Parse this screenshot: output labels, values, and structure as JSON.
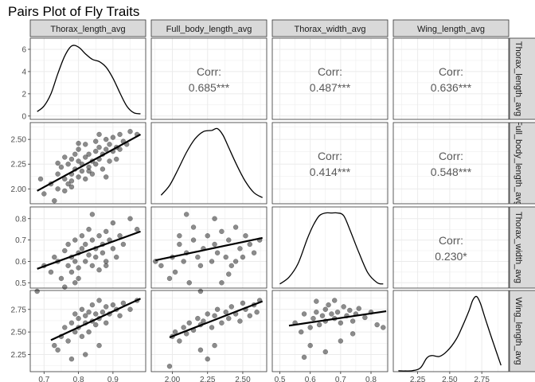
{
  "chart_data": {
    "type": "pairs",
    "title": "Pairs Plot of Fly Traits",
    "variables": [
      "Thorax_length_avg",
      "Full_body_length_avg",
      "Thorax_width_avg",
      "Wing_length_avg"
    ],
    "row_strips": [
      "Thorax_length_avg",
      "Full_body_length_avg",
      "Thorax_width_avg",
      "Wing_length_avg"
    ],
    "corr_label": "Corr:",
    "correlations": [
      {
        "row": 0,
        "col": 1,
        "value": "0.685***"
      },
      {
        "row": 0,
        "col": 2,
        "value": "0.487***"
      },
      {
        "row": 0,
        "col": 3,
        "value": "0.636***"
      },
      {
        "row": 1,
        "col": 2,
        "value": "0.414***"
      },
      {
        "row": 1,
        "col": 3,
        "value": "0.548***"
      },
      {
        "row": 2,
        "col": 3,
        "value": "0.230*"
      }
    ],
    "x_axes": [
      {
        "range": [
          0.66,
          0.995
        ],
        "ticks": [
          0.7,
          0.8,
          0.9
        ],
        "labels": [
          "0.7",
          "0.8",
          "0.9"
        ]
      },
      {
        "range": [
          1.85,
          2.67
        ],
        "ticks": [
          2.0,
          2.25,
          2.5
        ],
        "labels": [
          "2.00",
          "2.25",
          "2.50"
        ]
      },
      {
        "range": [
          0.475,
          0.855
        ],
        "ticks": [
          0.5,
          0.6,
          0.7,
          0.8
        ],
        "labels": [
          "0.5",
          "0.6",
          "0.7",
          "0.8"
        ]
      },
      {
        "range": [
          2.06,
          2.96
        ],
        "ticks": [
          2.25,
          2.5,
          2.75
        ],
        "labels": [
          "2.25",
          "2.50",
          "2.75"
        ]
      }
    ],
    "y_axes": [
      {
        "range": [
          -0.3,
          7.0
        ],
        "ticks": [
          0,
          2,
          4,
          6
        ],
        "labels": [
          "0",
          "2",
          "4",
          "6"
        ]
      },
      {
        "range": [
          1.85,
          2.67
        ],
        "ticks": [
          2.0,
          2.25,
          2.5
        ],
        "labels": [
          "2.00",
          "2.25",
          "2.50"
        ]
      },
      {
        "range": [
          0.475,
          0.855
        ],
        "ticks": [
          0.5,
          0.6,
          0.7,
          0.8
        ],
        "labels": [
          "0.5",
          "0.6",
          "0.7",
          "0.8"
        ]
      },
      {
        "range": [
          2.06,
          2.96
        ],
        "ticks": [
          2.25,
          2.5,
          2.75
        ],
        "labels": [
          "2.25",
          "2.50",
          "2.75"
        ]
      }
    ],
    "densities": [
      {
        "x": [
          0.68,
          0.7,
          0.72,
          0.74,
          0.76,
          0.78,
          0.8,
          0.82,
          0.84,
          0.86,
          0.88,
          0.9,
          0.92,
          0.94,
          0.96,
          0.98
        ],
        "y": [
          0.4,
          0.9,
          2.0,
          3.8,
          5.4,
          6.3,
          6.2,
          5.6,
          5.1,
          4.9,
          4.4,
          3.4,
          2.1,
          0.9,
          0.3,
          0.2
        ]
      },
      {
        "x": [
          1.92,
          1.98,
          2.04,
          2.1,
          2.16,
          2.22,
          2.28,
          2.32,
          2.36,
          2.4,
          2.46,
          2.52,
          2.58,
          2.64
        ],
        "y": [
          0.7,
          1.5,
          2.8,
          4.2,
          5.3,
          5.9,
          6.0,
          6.15,
          5.6,
          4.6,
          3.1,
          1.8,
          0.9,
          0.5
        ]
      },
      {
        "x": [
          0.5,
          0.53,
          0.56,
          0.59,
          0.61,
          0.63,
          0.65,
          0.67,
          0.69,
          0.71,
          0.73,
          0.76,
          0.79,
          0.82,
          0.84
        ],
        "y": [
          0.3,
          0.8,
          1.8,
          3.6,
          4.6,
          5.3,
          5.5,
          5.5,
          5.5,
          5.3,
          4.3,
          2.6,
          1.1,
          0.4,
          0.3
        ]
      },
      {
        "x": [
          2.1,
          2.2,
          2.27,
          2.32,
          2.36,
          2.42,
          2.48,
          2.55,
          2.6,
          2.65,
          2.68,
          2.71,
          2.74,
          2.78,
          2.84,
          2.9
        ],
        "y": [
          0.05,
          0.05,
          0.2,
          0.75,
          0.9,
          0.85,
          1.15,
          1.8,
          2.55,
          3.4,
          4.0,
          4.2,
          3.8,
          2.9,
          1.6,
          0.35
        ]
      }
    ],
    "scatter": [
      {
        "row": 1,
        "col": 0,
        "x_var": "Thorax_length_avg",
        "y_var": "Full_body_length_avg",
        "x": [
          0.69,
          0.7,
          0.72,
          0.73,
          0.74,
          0.74,
          0.75,
          0.76,
          0.76,
          0.77,
          0.77,
          0.78,
          0.78,
          0.78,
          0.79,
          0.79,
          0.8,
          0.8,
          0.8,
          0.81,
          0.81,
          0.82,
          0.82,
          0.82,
          0.83,
          0.83,
          0.84,
          0.84,
          0.85,
          0.85,
          0.85,
          0.86,
          0.86,
          0.87,
          0.87,
          0.88,
          0.88,
          0.89,
          0.89,
          0.9,
          0.9,
          0.91,
          0.91,
          0.92,
          0.93,
          0.94,
          0.95,
          0.97,
          0.78,
          0.83,
          0.86,
          0.8,
          0.76,
          0.88,
          0.92,
          0.74
        ],
        "y": [
          2.1,
          1.95,
          2.05,
          1.88,
          2.15,
          2.0,
          2.22,
          2.1,
          1.98,
          2.25,
          2.05,
          2.3,
          2.15,
          2.02,
          2.2,
          2.35,
          2.12,
          2.28,
          2.4,
          2.18,
          2.25,
          2.32,
          2.1,
          2.45,
          2.22,
          2.35,
          2.28,
          2.15,
          2.38,
          2.25,
          2.48,
          2.3,
          2.42,
          2.2,
          2.35,
          2.4,
          2.5,
          2.28,
          2.45,
          2.38,
          2.52,
          2.42,
          2.3,
          2.55,
          2.48,
          2.45,
          2.58,
          2.55,
          2.08,
          2.18,
          2.55,
          2.46,
          2.32,
          2.12,
          2.4,
          2.26
        ],
        "fit": [
          [
            0.68,
            1.98
          ],
          [
            0.98,
            2.55
          ]
        ]
      },
      {
        "row": 2,
        "col": 0,
        "x_var": "Thorax_length_avg",
        "y_var": "Thorax_width_avg",
        "x": [
          0.68,
          0.7,
          0.72,
          0.73,
          0.74,
          0.75,
          0.76,
          0.77,
          0.77,
          0.78,
          0.78,
          0.79,
          0.79,
          0.8,
          0.8,
          0.81,
          0.81,
          0.82,
          0.82,
          0.83,
          0.83,
          0.84,
          0.84,
          0.85,
          0.85,
          0.86,
          0.86,
          0.87,
          0.87,
          0.88,
          0.88,
          0.89,
          0.9,
          0.9,
          0.91,
          0.92,
          0.93,
          0.95,
          0.97,
          0.76,
          0.8,
          0.84,
          0.88,
          0.79
        ],
        "y": [
          0.46,
          0.58,
          0.55,
          0.62,
          0.6,
          0.52,
          0.65,
          0.58,
          0.68,
          0.62,
          0.55,
          0.7,
          0.6,
          0.64,
          0.57,
          0.66,
          0.72,
          0.6,
          0.68,
          0.63,
          0.75,
          0.58,
          0.7,
          0.66,
          0.62,
          0.72,
          0.56,
          0.68,
          0.64,
          0.74,
          0.6,
          0.7,
          0.66,
          0.78,
          0.62,
          0.72,
          0.68,
          0.8,
          0.75,
          0.48,
          0.52,
          0.82,
          0.58,
          0.5
        ],
        "fit": [
          [
            0.68,
            0.565
          ],
          [
            0.98,
            0.74
          ]
        ]
      },
      {
        "row": 2,
        "col": 1,
        "x_var": "Full_body_length_avg",
        "y_var": "Thorax_width_avg",
        "x": [
          1.88,
          1.92,
          1.98,
          2.0,
          2.02,
          2.05,
          2.08,
          2.1,
          2.12,
          2.15,
          2.18,
          2.2,
          2.22,
          2.25,
          2.28,
          2.3,
          2.32,
          2.35,
          2.38,
          2.4,
          2.42,
          2.45,
          2.48,
          2.5,
          2.52,
          2.55,
          2.58,
          2.62,
          2.1,
          2.2,
          2.3,
          2.4,
          2.15,
          2.35,
          2.05,
          2.45
        ],
        "y": [
          0.6,
          0.58,
          0.52,
          0.62,
          0.55,
          0.68,
          0.6,
          0.64,
          0.5,
          0.7,
          0.62,
          0.58,
          0.66,
          0.72,
          0.6,
          0.68,
          0.64,
          0.74,
          0.62,
          0.7,
          0.58,
          0.76,
          0.66,
          0.62,
          0.72,
          0.68,
          0.64,
          0.7,
          0.82,
          0.46,
          0.8,
          0.54,
          0.76,
          0.5,
          0.72,
          0.6
        ],
        "fit": [
          [
            1.88,
            0.605
          ],
          [
            2.64,
            0.71
          ]
        ]
      },
      {
        "row": 3,
        "col": 0,
        "x_var": "Thorax_length_avg",
        "y_var": "Wing_length_avg",
        "x": [
          0.73,
          0.74,
          0.75,
          0.76,
          0.77,
          0.78,
          0.79,
          0.79,
          0.8,
          0.8,
          0.81,
          0.81,
          0.82,
          0.82,
          0.83,
          0.83,
          0.84,
          0.84,
          0.85,
          0.85,
          0.86,
          0.86,
          0.87,
          0.88,
          0.88,
          0.89,
          0.9,
          0.91,
          0.92,
          0.93,
          0.95,
          0.97,
          0.78,
          0.82,
          0.86
        ],
        "y": [
          2.35,
          2.3,
          2.45,
          2.55,
          2.4,
          2.6,
          2.5,
          2.7,
          2.55,
          2.65,
          2.45,
          2.75,
          2.6,
          2.68,
          2.5,
          2.72,
          2.62,
          2.8,
          2.58,
          2.7,
          2.65,
          2.85,
          2.72,
          2.6,
          2.78,
          2.7,
          2.8,
          2.75,
          2.68,
          2.82,
          2.75,
          2.85,
          2.2,
          2.25,
          2.35
        ],
        "fit": [
          [
            0.72,
            2.41
          ],
          [
            0.98,
            2.87
          ]
        ]
      },
      {
        "row": 3,
        "col": 1,
        "x_var": "Full_body_length_avg",
        "y_var": "Wing_length_avg",
        "x": [
          2.0,
          2.02,
          2.05,
          2.08,
          2.1,
          2.12,
          2.15,
          2.18,
          2.2,
          2.22,
          2.25,
          2.28,
          2.3,
          2.32,
          2.35,
          2.38,
          2.4,
          2.42,
          2.45,
          2.48,
          2.5,
          2.52,
          2.55,
          2.58,
          2.6,
          2.62,
          2.2,
          2.3,
          2.25,
          1.98
        ],
        "y": [
          2.45,
          2.5,
          2.4,
          2.55,
          2.48,
          2.6,
          2.52,
          2.65,
          2.58,
          2.62,
          2.7,
          2.55,
          2.68,
          2.75,
          2.6,
          2.72,
          2.65,
          2.78,
          2.7,
          2.62,
          2.82,
          2.75,
          2.68,
          2.8,
          2.72,
          2.85,
          2.3,
          2.35,
          2.2,
          2.12
        ],
        "fit": [
          [
            1.98,
            2.44
          ],
          [
            2.64,
            2.84
          ]
        ]
      },
      {
        "row": 3,
        "col": 2,
        "x_var": "Thorax_width_avg",
        "y_var": "Wing_length_avg",
        "x": [
          0.55,
          0.57,
          0.58,
          0.6,
          0.61,
          0.62,
          0.63,
          0.64,
          0.65,
          0.65,
          0.66,
          0.67,
          0.68,
          0.68,
          0.69,
          0.7,
          0.71,
          0.72,
          0.73,
          0.74,
          0.75,
          0.76,
          0.78,
          0.8,
          0.82,
          0.6,
          0.65,
          0.7,
          0.58,
          0.74,
          0.62,
          0.84
        ],
        "y": [
          2.6,
          2.5,
          2.7,
          2.55,
          2.65,
          2.72,
          2.58,
          2.68,
          2.75,
          2.62,
          2.8,
          2.7,
          2.65,
          2.85,
          2.72,
          2.6,
          2.78,
          2.68,
          2.74,
          2.62,
          2.7,
          2.76,
          2.66,
          2.72,
          2.58,
          2.35,
          2.28,
          2.4,
          2.22,
          2.48,
          2.84,
          2.55
        ],
        "fit": [
          [
            0.53,
            2.57
          ],
          [
            0.85,
            2.73
          ]
        ]
      }
    ]
  }
}
